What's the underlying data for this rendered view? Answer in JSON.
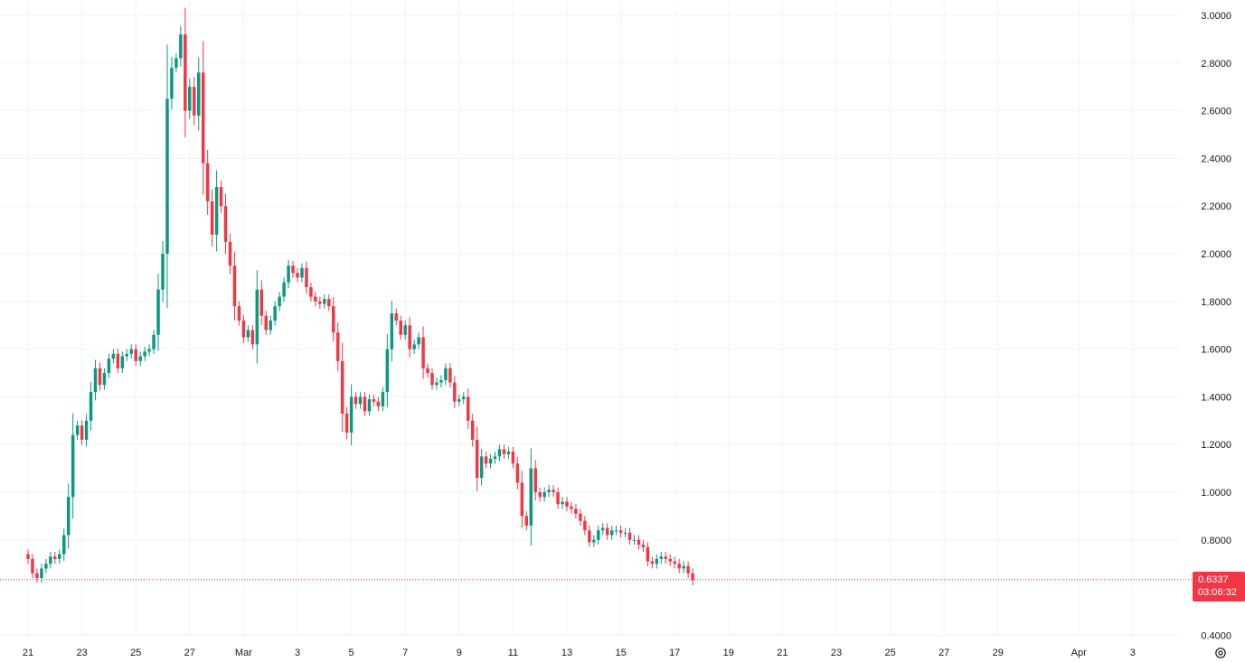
{
  "chart_data": {
    "type": "candlestick",
    "y_axis": {
      "ticks": [
        "3.0000",
        "2.8000",
        "2.6000",
        "2.4000",
        "2.2000",
        "2.0000",
        "1.8000",
        "1.6000",
        "1.4000",
        "1.2000",
        "1.0000",
        "0.8000",
        "0.4000"
      ],
      "tick_values": [
        3.0,
        2.8,
        2.6,
        2.4,
        2.2,
        2.0,
        1.8,
        1.6,
        1.4,
        1.2,
        1.0,
        0.8,
        0.4
      ],
      "range": [
        0.4,
        3.0
      ]
    },
    "x_axis": {
      "ticks": [
        "21",
        "23",
        "25",
        "27",
        "Mar",
        "3",
        "5",
        "7",
        "9",
        "11",
        "13",
        "15",
        "17",
        "19",
        "21",
        "23",
        "25",
        "27",
        "29",
        "Apr",
        "3"
      ],
      "tick_days": [
        0,
        2,
        4,
        6,
        8,
        10,
        12,
        14,
        16,
        18,
        20,
        22,
        24,
        26,
        28,
        30,
        32,
        34,
        36,
        39,
        41
      ]
    },
    "grid": true,
    "up_color": "#089981",
    "down_color": "#f23645",
    "last_price": {
      "value": "0.6337",
      "countdown": "03:06:32",
      "numeric": 0.6337
    },
    "candle_interval_hours": 4,
    "closes": [
      0.72,
      0.66,
      0.64,
      0.68,
      0.7,
      0.73,
      0.72,
      0.74,
      0.82,
      0.98,
      1.24,
      1.28,
      1.22,
      1.3,
      1.42,
      1.52,
      1.45,
      1.5,
      1.56,
      1.58,
      1.52,
      1.57,
      1.58,
      1.6,
      1.55,
      1.57,
      1.59,
      1.6,
      1.66,
      1.85,
      2.0,
      2.65,
      2.78,
      2.82,
      2.92,
      2.6,
      2.7,
      2.58,
      2.76,
      2.38,
      2.22,
      2.08,
      2.28,
      2.2,
      2.05,
      1.95,
      1.78,
      1.72,
      1.65,
      1.68,
      1.62,
      1.85,
      1.74,
      1.68,
      1.72,
      1.78,
      1.82,
      1.88,
      1.95,
      1.92,
      1.9,
      1.94,
      1.86,
      1.82,
      1.8,
      1.79,
      1.81,
      1.78,
      1.67,
      1.55,
      1.33,
      1.25,
      1.4,
      1.37,
      1.4,
      1.34,
      1.39,
      1.38,
      1.36,
      1.42,
      1.6,
      1.75,
      1.72,
      1.66,
      1.7,
      1.6,
      1.62,
      1.65,
      1.52,
      1.5,
      1.45,
      1.46,
      1.47,
      1.52,
      1.46,
      1.38,
      1.39,
      1.4,
      1.3,
      1.22,
      1.06,
      1.15,
      1.12,
      1.14,
      1.15,
      1.18,
      1.16,
      1.17,
      1.12,
      1.04,
      0.9,
      0.86,
      1.1,
      1.0,
      0.98,
      1.0,
      1.01,
      1.0,
      0.95,
      0.96,
      0.94,
      0.93,
      0.91,
      0.88,
      0.84,
      0.79,
      0.8,
      0.84,
      0.85,
      0.82,
      0.84,
      0.84,
      0.83,
      0.83,
      0.8,
      0.8,
      0.78,
      0.77,
      0.71,
      0.7,
      0.72,
      0.73,
      0.72,
      0.71,
      0.7,
      0.68,
      0.69,
      0.66,
      0.63
    ]
  }
}
